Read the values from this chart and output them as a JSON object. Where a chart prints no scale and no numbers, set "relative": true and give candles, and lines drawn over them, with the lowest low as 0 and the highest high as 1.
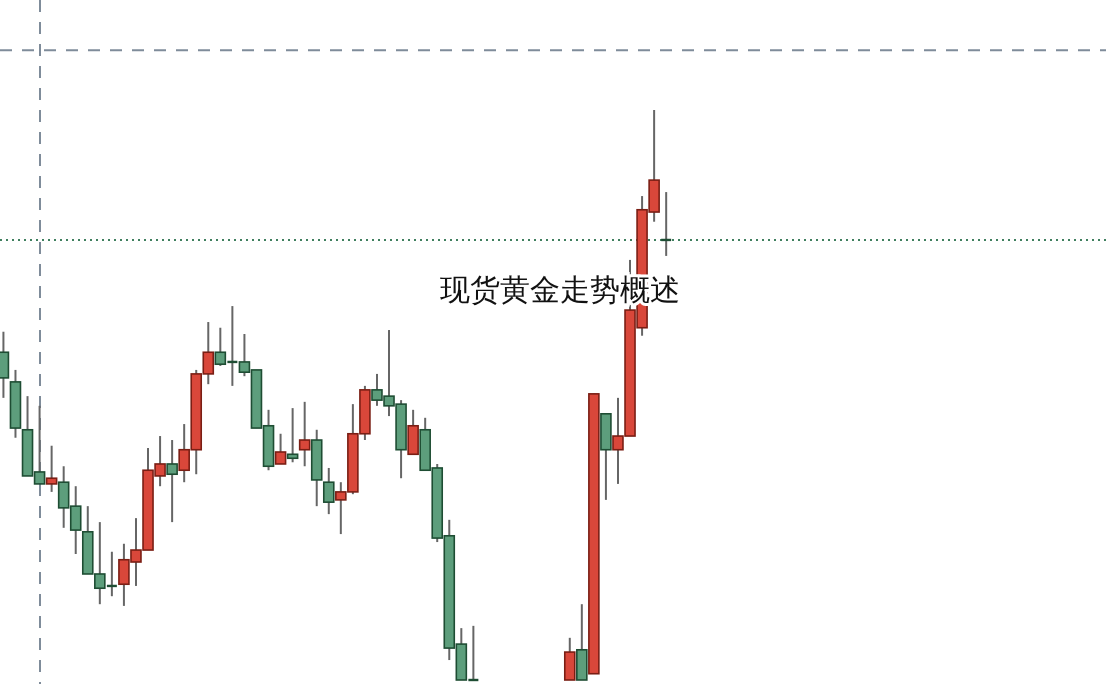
{
  "chart_data": {
    "type": "candlestick",
    "title": "现货黄金走势概述",
    "relative": true,
    "categories": [
      null,
      null,
      null,
      null,
      null,
      null,
      null,
      null,
      null,
      null,
      null,
      null,
      null,
      null,
      null,
      null,
      null,
      null,
      null,
      null,
      null,
      null,
      null,
      null,
      null,
      null,
      null,
      null,
      null,
      null,
      null,
      null,
      null,
      null,
      null,
      null,
      null,
      null,
      null,
      null,
      null,
      null,
      null,
      null,
      null,
      null,
      null,
      null,
      null,
      null,
      null,
      null,
      null,
      null,
      null,
      null,
      null,
      null,
      null,
      null,
      null,
      null,
      null,
      null,
      null,
      null,
      null,
      null,
      null,
      null,
      null,
      null,
      null,
      null,
      null,
      null,
      null,
      null,
      null,
      null,
      null,
      null,
      null,
      null,
      null,
      null,
      null,
      null,
      null,
      null,
      null,
      null
    ],
    "ohlc": [
      [
        0.575,
        0.611,
        0.495,
        0.53
      ],
      [
        0.523,
        0.544,
        0.425,
        0.442
      ],
      [
        0.439,
        0.498,
        0.358,
        0.358
      ],
      [
        0.365,
        0.481,
        0.344,
        0.344
      ],
      [
        0.344,
        0.411,
        0.33,
        0.354
      ],
      [
        0.347,
        0.375,
        0.267,
        0.302
      ],
      [
        0.305,
        0.34,
        0.221,
        0.263
      ],
      [
        0.26,
        0.305,
        0.186,
        0.186
      ],
      [
        0.186,
        0.277,
        0.133,
        0.161
      ],
      [
        0.165,
        0.225,
        0.147,
        0.165
      ],
      [
        0.168,
        0.239,
        0.13,
        0.211
      ],
      [
        0.207,
        0.284,
        0.165,
        0.228
      ],
      [
        0.228,
        0.407,
        0.228,
        0.368
      ],
      [
        0.358,
        0.428,
        0.34,
        0.379
      ],
      [
        0.379,
        0.421,
        0.277,
        0.361
      ],
      [
        0.368,
        0.449,
        0.347,
        0.404
      ],
      [
        0.404,
        0.544,
        0.361,
        0.537
      ],
      [
        0.537,
        0.628,
        0.519,
        0.575
      ],
      [
        0.575,
        0.618,
        0.551,
        0.554
      ],
      [
        0.558,
        0.656,
        0.516,
        0.558
      ],
      [
        0.558,
        0.607,
        0.533,
        0.54
      ],
      [
        0.544,
        0.544,
        0.442,
        0.442
      ],
      [
        0.446,
        0.474,
        0.368,
        0.375
      ],
      [
        0.379,
        0.432,
        0.379,
        0.4
      ],
      [
        0.396,
        0.477,
        0.382,
        0.389
      ],
      [
        0.404,
        0.488,
        0.375,
        0.421
      ],
      [
        0.421,
        0.439,
        0.305,
        0.351
      ],
      [
        0.347,
        0.372,
        0.291,
        0.312
      ],
      [
        0.316,
        0.347,
        0.256,
        0.33
      ],
      [
        0.33,
        0.484,
        0.326,
        0.432
      ],
      [
        0.432,
        0.516,
        0.421,
        0.509
      ],
      [
        0.509,
        0.537,
        0.481,
        0.491
      ],
      [
        0.498,
        0.614,
        0.463,
        0.481
      ],
      [
        0.484,
        0.491,
        0.354,
        0.404
      ],
      [
        0.396,
        0.474,
        0.396,
        0.446
      ],
      [
        0.439,
        0.46,
        0.368,
        0.368
      ],
      [
        0.372,
        0.379,
        0.242,
        0.249
      ],
      [
        0.253,
        0.281,
        0.035,
        0.056
      ],
      [
        0.063,
        0.091,
        0,
        0
      ],
      [
        0,
        0.095,
        0,
        0
      ],
      null,
      null,
      null,
      null,
      null,
      null,
      null,
      [
        0,
        0.074,
        0,
        0.049
      ],
      [
        0.053,
        0.133,
        0,
        0
      ],
      [
        0.011,
        0.502,
        0.011,
        0.502
      ],
      [
        0.467,
        0.467,
        0.316,
        0.404
      ],
      [
        0.404,
        0.495,
        0.344,
        0.428
      ],
      [
        0.428,
        0.737,
        0.428,
        0.649
      ],
      [
        0.618,
        0.849,
        0.604,
        0.825
      ],
      [
        0.821,
        1,
        0.804,
        0.877
      ],
      [
        0.772,
        0.856,
        0.744,
        0.772
      ],
      null,
      null,
      null,
      null,
      null,
      null,
      null,
      null,
      null,
      null,
      null,
      null,
      null,
      null,
      null,
      null,
      null,
      null,
      null,
      null,
      null,
      null,
      null,
      null,
      null,
      null,
      null,
      null,
      null,
      null,
      null,
      null,
      null,
      null,
      null,
      null
    ],
    "ref_lines": [
      {
        "axis": "y",
        "value": 1.105,
        "color": "#7f8c9a",
        "line_style": "dashed"
      },
      {
        "axis": "y",
        "value": 0.772,
        "color": "#3f7f5f",
        "line_style": "dotted"
      }
    ]
  }
}
